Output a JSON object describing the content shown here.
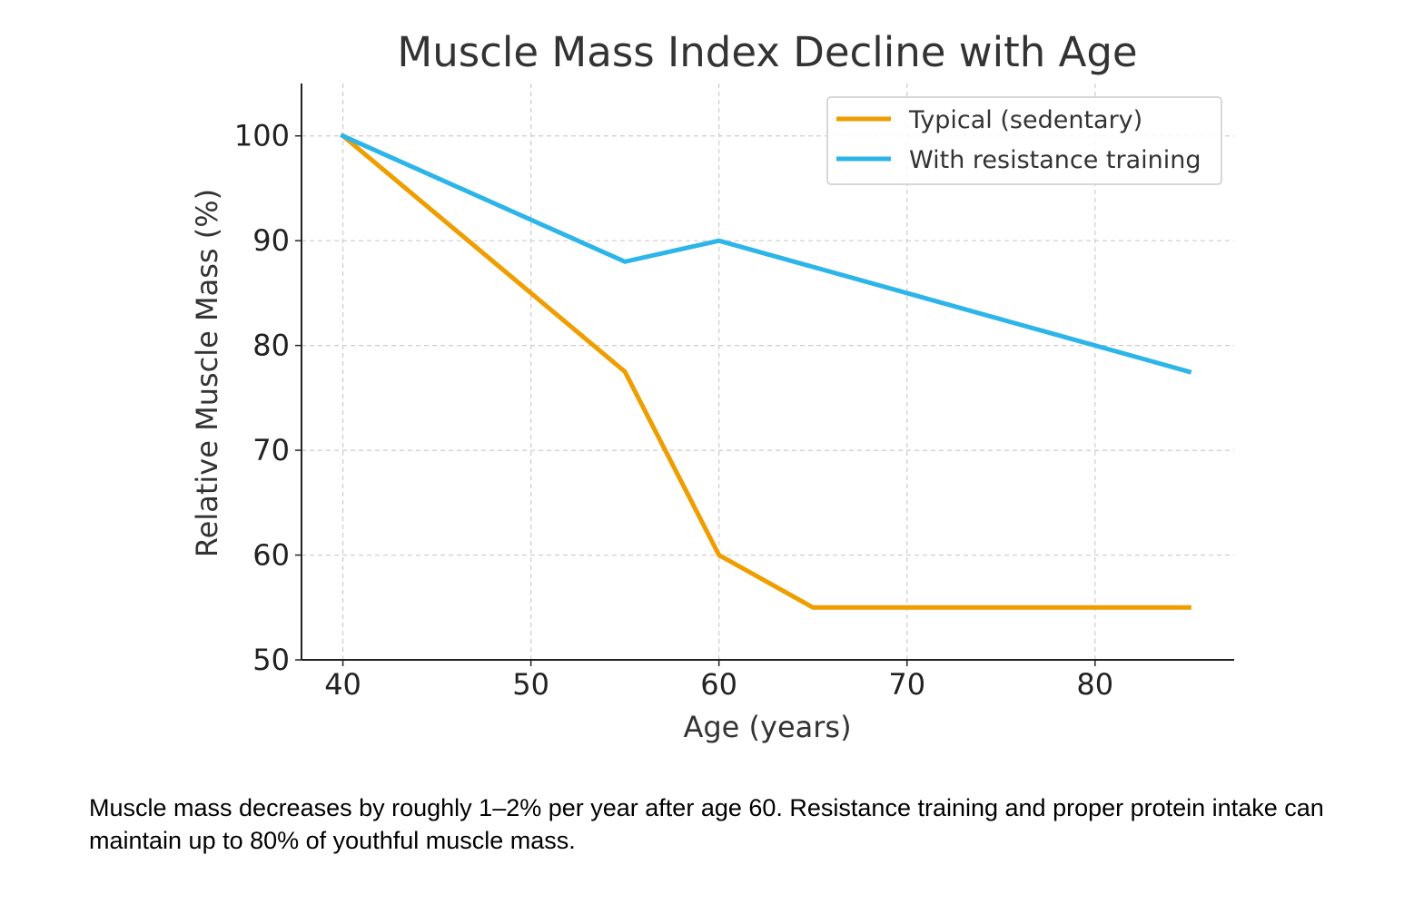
{
  "chart_data": {
    "type": "line",
    "title": "Muscle Mass Index Decline with Age",
    "xlabel": "Age (years)",
    "ylabel": "Relative Muscle Mass (%)",
    "xlim": [
      37.8,
      87.4
    ],
    "ylim": [
      50,
      105
    ],
    "xticks": [
      40,
      50,
      60,
      70,
      80
    ],
    "yticks": [
      50,
      60,
      70,
      80,
      90,
      100
    ],
    "grid": true,
    "legend_position": "top-right",
    "series": [
      {
        "name": "Typical (sedentary)",
        "color": "#ee9e00",
        "x": [
          40,
          55,
          60,
          65,
          85
        ],
        "y": [
          100,
          77.5,
          60,
          55,
          55
        ]
      },
      {
        "name": "With resistance training",
        "color": "#2db5ea",
        "x": [
          40,
          55,
          60,
          85
        ],
        "y": [
          100,
          88,
          90,
          77.5
        ]
      }
    ]
  },
  "caption": "Muscle mass decreases by roughly 1–2% per year after age 60. Resistance training and proper protein intake can maintain up to 80% of youthful muscle mass."
}
